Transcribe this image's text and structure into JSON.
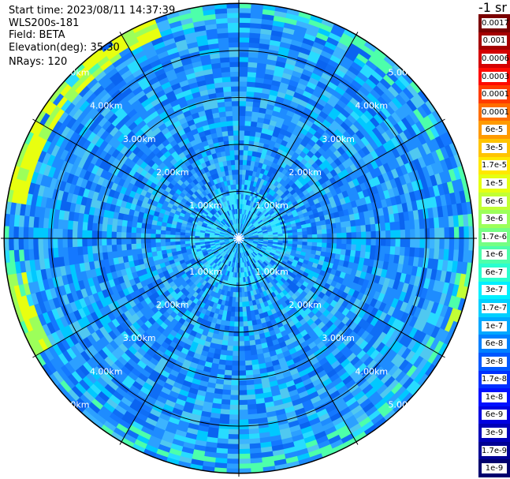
{
  "header": {
    "start_time": "Start time: 2023/08/11 14:37:39",
    "instrument": "WLS200s-181",
    "field": "Field: BETA",
    "elevation": "Elevation(deg): 35.30",
    "nrays": "NRays: 120"
  },
  "colorbar": {
    "unit_label": "-1 sr",
    "levels": [
      "0.0017",
      "0.001",
      "0.0006",
      "0.0003",
      "0.00017",
      "0.0001",
      "6e-5",
      "3e-5",
      "1.7e-5",
      "1e-5",
      "6e-6",
      "3e-6",
      "1.7e-6",
      "1e-6",
      "6e-7",
      "3e-7",
      "1.7e-7",
      "1e-7",
      "6e-8",
      "3e-8",
      "1.7e-8",
      "1e-8",
      "6e-9",
      "3e-9",
      "1.7e-9",
      "1e-9"
    ],
    "colors": [
      "#7a0000",
      "#a50000",
      "#d40000",
      "#ff0a00",
      "#ff3c00",
      "#ff6e00",
      "#ff9a00",
      "#ffc400",
      "#ffe800",
      "#e5ff12",
      "#c2ff35",
      "#9cff5a",
      "#74ff83",
      "#4dffaa",
      "#2affcf",
      "#00f0ff",
      "#00d0ff",
      "#00a8ff",
      "#0080ff",
      "#0058ff",
      "#0030ff",
      "#0010ff",
      "#0000e0",
      "#0000b8",
      "#000094",
      "#00006e"
    ]
  },
  "chart_data": {
    "type": "heatmap",
    "projection": "polar (PPI scan)",
    "title": "",
    "range_rings_km": [
      1,
      2,
      3,
      4,
      5
    ],
    "range_labels": [
      "1.00km",
      "2.00km",
      "3.00km",
      "4.00km",
      "5.00km"
    ],
    "max_range_km": 5.0,
    "azimuth_spokes_deg": [
      0,
      30,
      60,
      90,
      120,
      150,
      180,
      210,
      240,
      270,
      300,
      330
    ],
    "nrays": 120,
    "value_scale": "log",
    "value_range": [
      "1e-9",
      "0.0017"
    ],
    "description_of_field": "Backscatter coefficient (BETA); mostly values between 1e-8 and 1e-6 sr-1, higher (3e-6 to 1.7e-5) near the outer edge in the north-west and west"
  }
}
